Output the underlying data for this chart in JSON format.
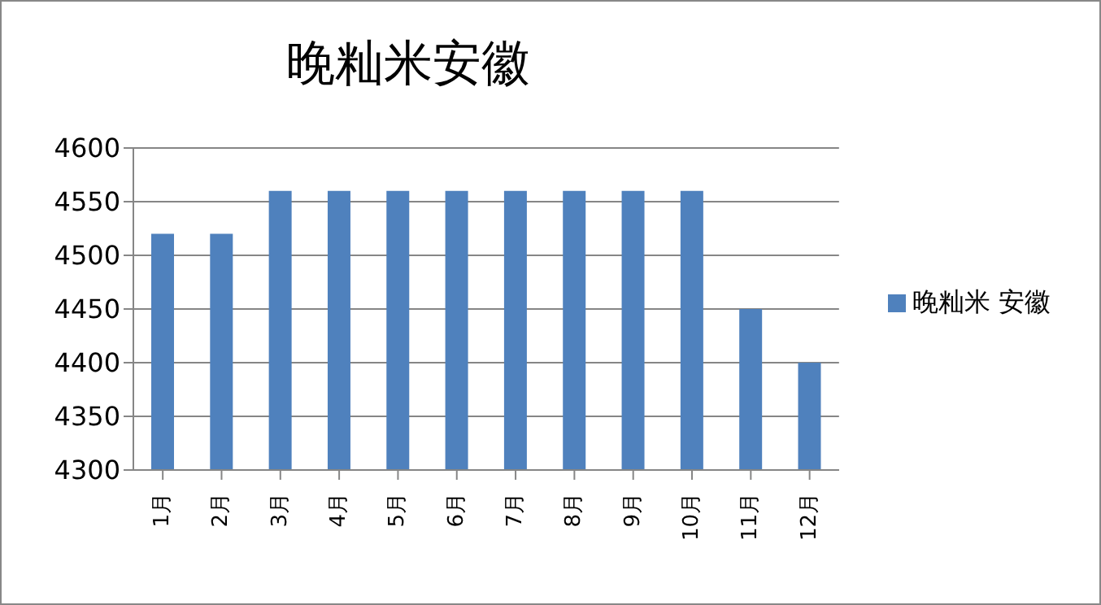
{
  "chart_data": {
    "type": "bar",
    "title": "晚籼米安徽",
    "categories": [
      "1月",
      "2月",
      "3月",
      "4月",
      "5月",
      "6月",
      "7月",
      "8月",
      "9月",
      "10月",
      "11月",
      "12月"
    ],
    "series": [
      {
        "name": "晚籼米 安徽",
        "color": "#4f81bd",
        "values": [
          4520,
          4520,
          4560,
          4560,
          4560,
          4560,
          4560,
          4560,
          4560,
          4560,
          4450,
          4400
        ]
      }
    ],
    "ylim": [
      4300,
      4600
    ],
    "yticks": [
      4300,
      4350,
      4400,
      4450,
      4500,
      4550,
      4600
    ],
    "grid": "y",
    "legend": "right"
  }
}
